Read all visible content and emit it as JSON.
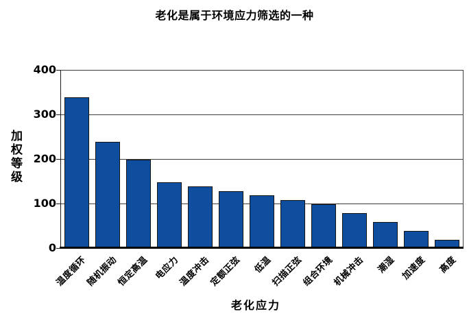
{
  "chart_data": {
    "type": "bar",
    "title": "老化是属于环境应力筛选的一种",
    "xlabel": "老化应力",
    "ylabel": "加权等级",
    "categories": [
      "温度循环",
      "随机振动",
      "恒定高温",
      "电应力",
      "温度冲击",
      "定额正弦",
      "低温",
      "扫描正弦",
      "组合环境",
      "机械冲击",
      "潮湿",
      "加速度",
      "高度"
    ],
    "values": [
      340,
      240,
      200,
      150,
      140,
      130,
      120,
      110,
      100,
      80,
      60,
      40,
      20
    ],
    "ylim": [
      0,
      400
    ],
    "yticks": [
      0,
      100,
      200,
      300,
      400
    ],
    "grid": "horizontal gridlines every 100",
    "legend": "none",
    "bar_color": "#0F4E9E",
    "bar_border_color": "#141414",
    "gridline_color": "#3d3d3d",
    "axis_color": "#000000",
    "text_color": "#000000",
    "background_color": "#ffffff"
  }
}
